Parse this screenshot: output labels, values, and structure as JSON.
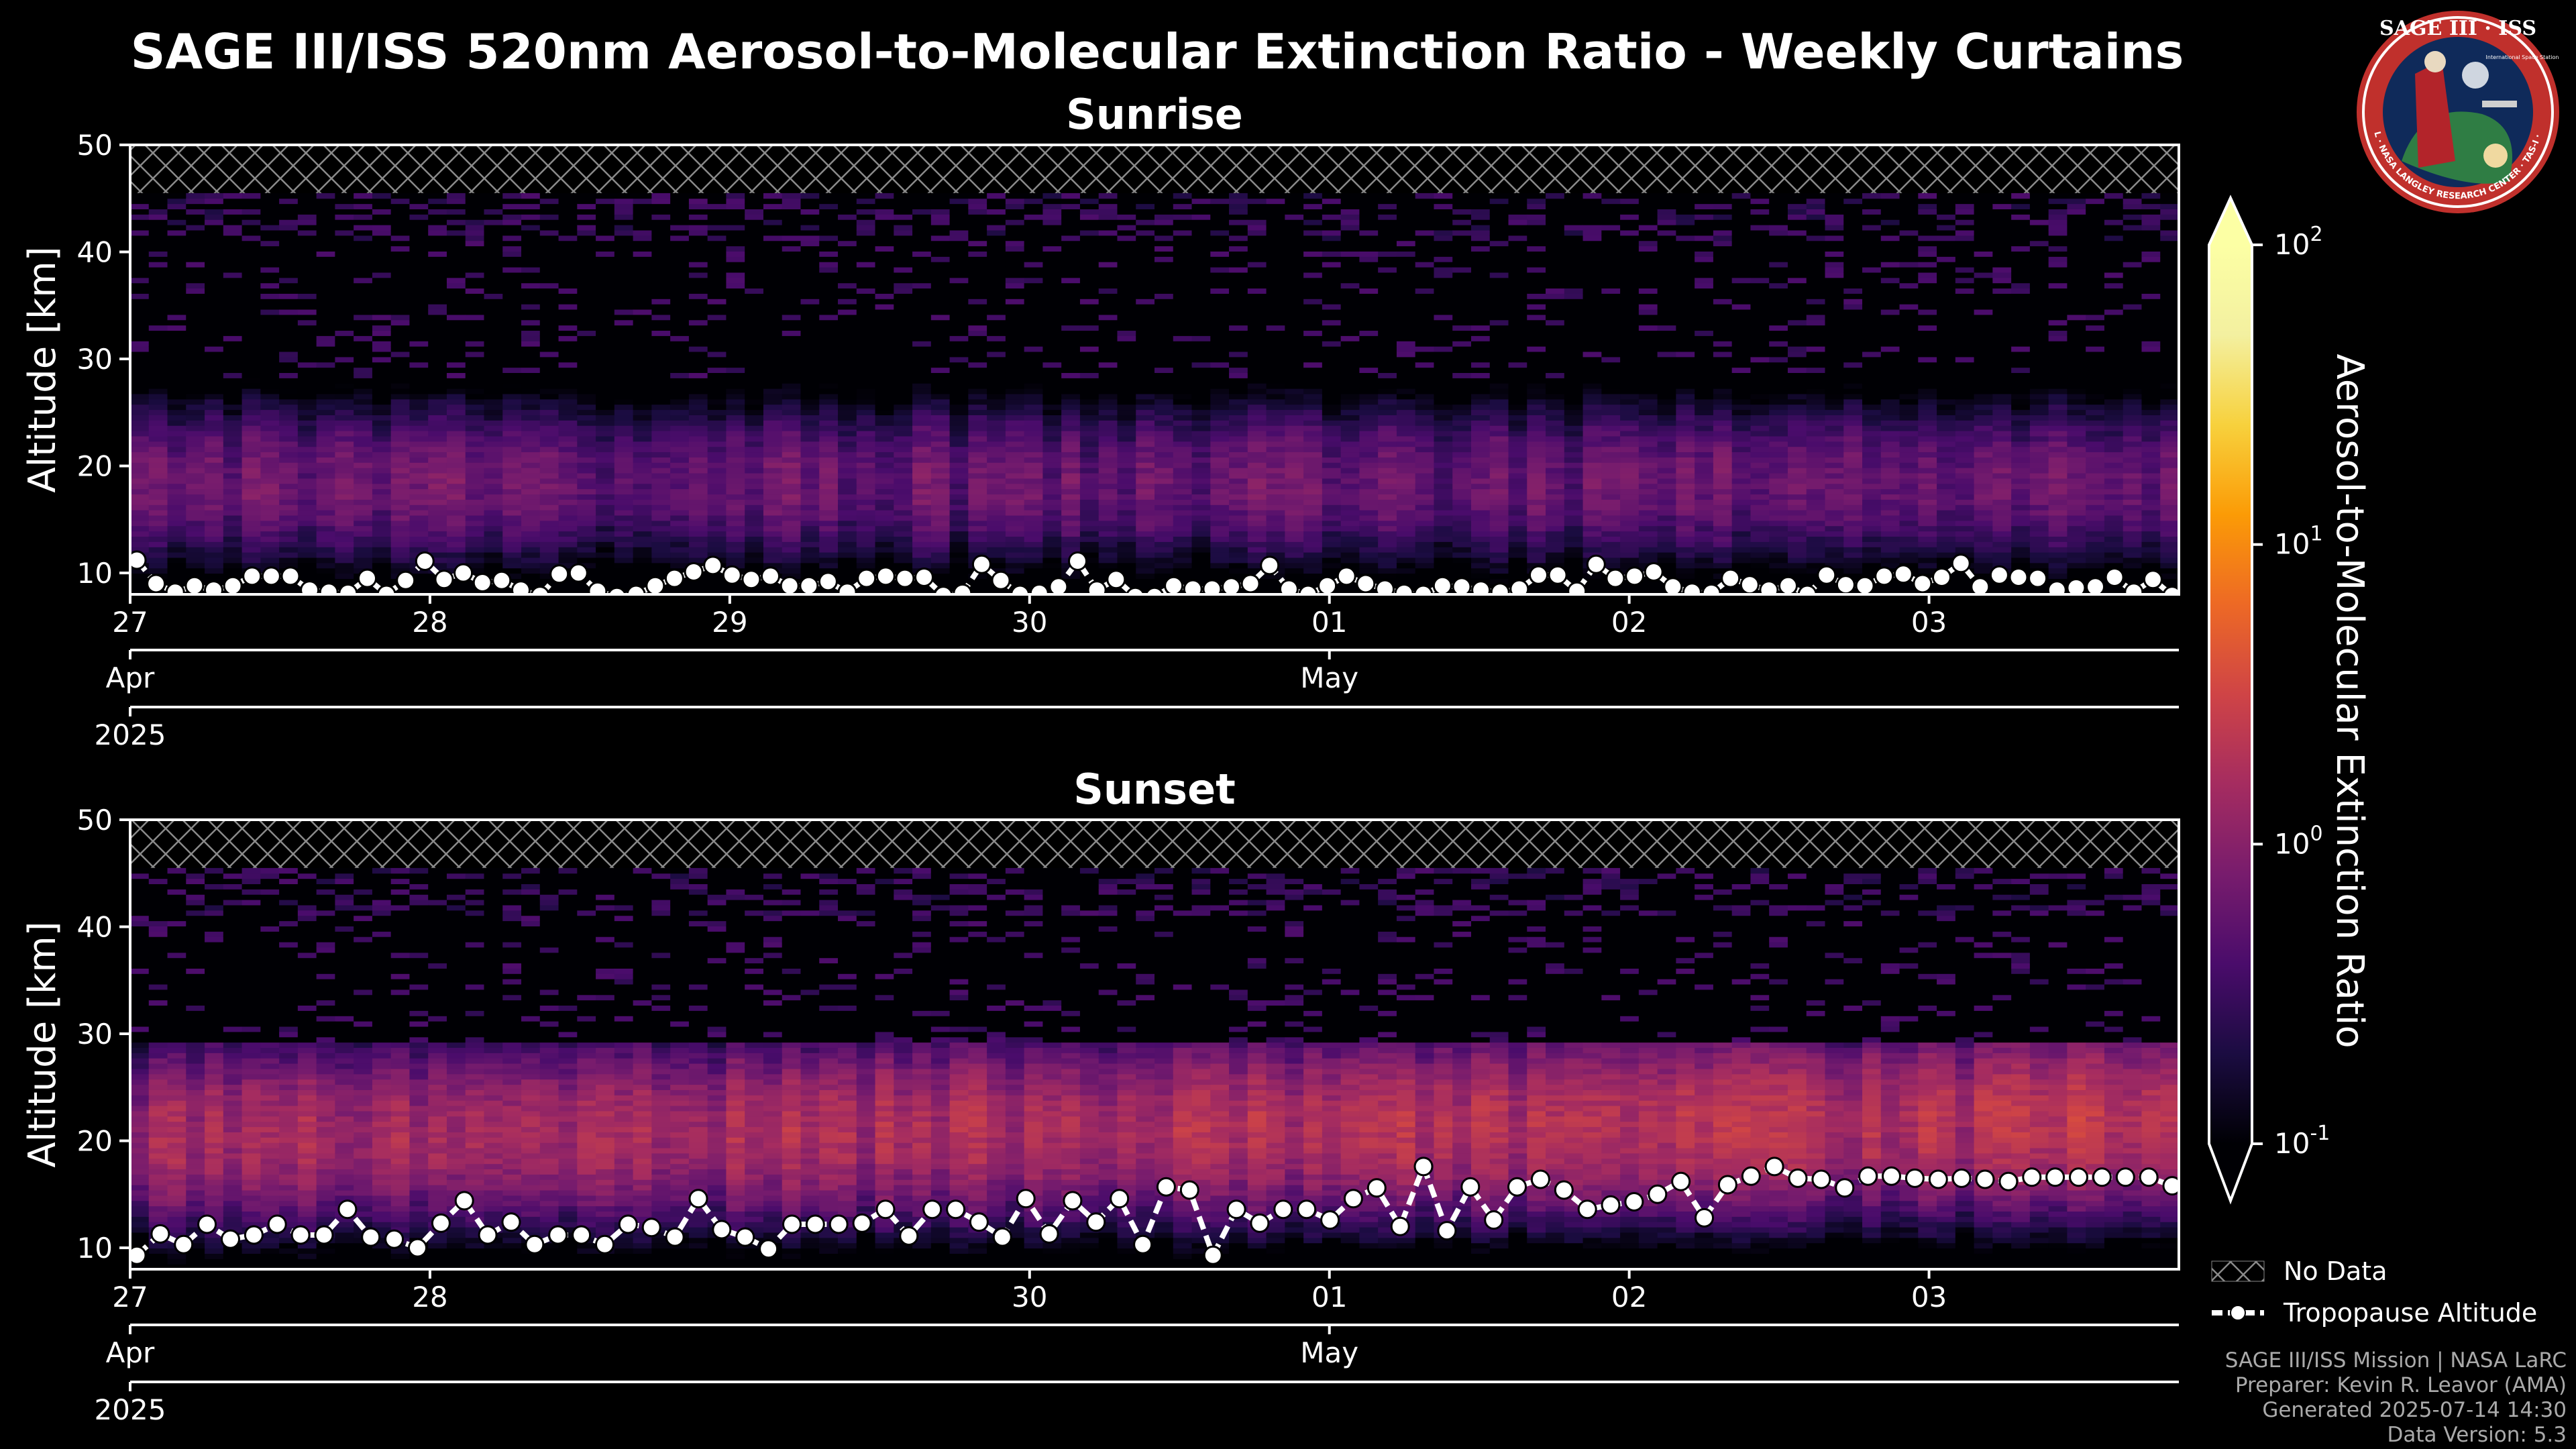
{
  "figure": {
    "title": "SAGE III/ISS 520nm Aerosol-to-Molecular Extinction Ratio - Weekly Curtains",
    "footer": [
      "SAGE III/ISS Mission | NASA LaRC",
      "Preparer: Kevin R. Leavor (AMA)",
      "Generated 2025-07-14 14:30",
      "Data Version: 5.3"
    ],
    "logo": {
      "title": "SAGE III · ISS",
      "ring_text": "BALL · NASA LANGLEY RESEARCH CENTER · TAS-I · ESA",
      "subtitle": "International Space Station",
      "colors": {
        "ring": "#c0302c",
        "inner": "#0f2a5a",
        "earth": "#2f7d44"
      }
    },
    "colors": {
      "panel_border": "#ffffff",
      "background": "#000000",
      "hatch": "#888888",
      "tropopause": "#ffffff"
    }
  },
  "colorbar": {
    "label": "Aerosol-to-Molecular Extinction Ratio",
    "scale": "log",
    "range": [
      0.1,
      100
    ],
    "extend": "both",
    "colormap": "inferno",
    "ticks": [
      {
        "base": "10",
        "exp": "-1"
      },
      {
        "base": "10",
        "exp": "0"
      },
      {
        "base": "10",
        "exp": "1"
      },
      {
        "base": "10",
        "exp": "2"
      }
    ]
  },
  "legend": {
    "no_data": "No Data",
    "tropopause": "Tropopause Altitude"
  },
  "chart_data": [
    {
      "type": "heatmap",
      "title": "Sunrise",
      "ylabel": "Altitude [km]",
      "ylim": [
        8,
        50
      ],
      "yticks": [
        10,
        20,
        30,
        40,
        50
      ],
      "xlim_days": [
        "2025-04-27",
        "2025-05-03 20:00"
      ],
      "day_ticks": [
        {
          "label": "27",
          "date": "2025-04-27"
        },
        {
          "label": "28",
          "date": "2025-04-28"
        },
        {
          "label": "29",
          "date": "2025-04-29"
        },
        {
          "label": "30",
          "date": "2025-04-30"
        },
        {
          "label": "01",
          "date": "2025-05-01"
        },
        {
          "label": "02",
          "date": "2025-05-02"
        },
        {
          "label": "03",
          "date": "2025-05-03"
        }
      ],
      "month_ticks": [
        {
          "label": "Apr",
          "date": "2025-04-27"
        },
        {
          "label": "May",
          "date": "2025-05-01"
        }
      ],
      "year_ticks": [
        {
          "label": "2025",
          "date": "2025-04-27"
        }
      ],
      "no_data_above_km": 45.5,
      "aerosol_layer": {
        "center_km": 18.5,
        "half_width_km": 5.5,
        "peak_ratio": 0.8,
        "top_km": 27
      },
      "tropopause_km": [
        11.2,
        9.0,
        8.2,
        8.8,
        8.4,
        8.8,
        9.7,
        9.7,
        9.7,
        8.4,
        8.2,
        8.1,
        9.5,
        8.0,
        9.3,
        11.1,
        9.4,
        10.0,
        9.1,
        9.3,
        8.4,
        7.9,
        9.9,
        10.0,
        8.3,
        7.8,
        8.0,
        8.8,
        9.5,
        10.1,
        10.7,
        9.8,
        9.4,
        9.7,
        8.8,
        8.8,
        9.2,
        8.2,
        9.5,
        9.7,
        9.5,
        9.6,
        7.9,
        8.1,
        10.8,
        9.3,
        8.0,
        8.1,
        8.7,
        11.1,
        8.4,
        9.4,
        7.8,
        7.8,
        8.8,
        8.5,
        8.5,
        8.7,
        9.0,
        10.7,
        8.5,
        8.0,
        8.8,
        9.7,
        9.0,
        8.5,
        8.1,
        8.0,
        8.8,
        8.7,
        8.4,
        8.2,
        8.5,
        9.8,
        9.8,
        8.3,
        10.8,
        9.5,
        9.7,
        10.1,
        8.7,
        8.2,
        8.1,
        9.5,
        8.9,
        8.4,
        8.8,
        8.0,
        9.8,
        8.9,
        8.8,
        9.7,
        9.9,
        9.0,
        9.6,
        10.9,
        8.7,
        9.8,
        9.6,
        9.5,
        8.4,
        8.6,
        8.7,
        9.6,
        8.2,
        9.4,
        7.9
      ]
    },
    {
      "type": "heatmap",
      "title": "Sunset",
      "ylabel": "Altitude [km]",
      "ylim": [
        8,
        50
      ],
      "yticks": [
        10,
        20,
        30,
        40,
        50
      ],
      "xlim_days": [
        "2025-04-27",
        "2025-05-03 20:00"
      ],
      "day_ticks": [
        {
          "label": "27",
          "date": "2025-04-27"
        },
        {
          "label": "28",
          "date": "2025-04-28"
        },
        {
          "label": "30",
          "date": "2025-04-30"
        },
        {
          "label": "01",
          "date": "2025-05-01"
        },
        {
          "label": "02",
          "date": "2025-05-02"
        },
        {
          "label": "03",
          "date": "2025-05-03"
        }
      ],
      "month_ticks": [
        {
          "label": "Apr",
          "date": "2025-04-27"
        },
        {
          "label": "May",
          "date": "2025-05-01"
        }
      ],
      "year_ticks": [
        {
          "label": "2025",
          "date": "2025-04-27"
        }
      ],
      "no_data_above_km": 45.5,
      "aerosol_layer": {
        "center_km": 20.5,
        "half_width_km": 6.0,
        "peak_ratio": 2.0,
        "top_km": 28
      },
      "tropopause_km": [
        9.3,
        11.3,
        10.3,
        12.2,
        10.8,
        11.2,
        12.2,
        11.2,
        11.2,
        13.6,
        11.0,
        10.8,
        10.0,
        12.3,
        14.4,
        11.2,
        12.4,
        10.3,
        11.2,
        11.2,
        10.3,
        12.2,
        11.9,
        11.0,
        14.6,
        11.7,
        11.0,
        9.9,
        12.2,
        12.2,
        12.2,
        12.3,
        13.6,
        11.1,
        13.6,
        13.6,
        12.4,
        11.0,
        14.6,
        11.3,
        14.4,
        12.4,
        14.6,
        10.3,
        15.7,
        15.4,
        9.3,
        13.6,
        12.3,
        13.6,
        13.6,
        12.6,
        14.6,
        15.6,
        12.0,
        17.6,
        11.6,
        15.7,
        12.6,
        15.7,
        16.4,
        15.4,
        13.6,
        14.0,
        14.3,
        15.0,
        16.2,
        12.8,
        15.9,
        16.7,
        17.6,
        16.5,
        16.4,
        15.6,
        16.7,
        16.7,
        16.5,
        16.4,
        16.5,
        16.4,
        16.2,
        16.6,
        16.6,
        16.6,
        16.6,
        16.6,
        16.6,
        15.8
      ]
    }
  ]
}
